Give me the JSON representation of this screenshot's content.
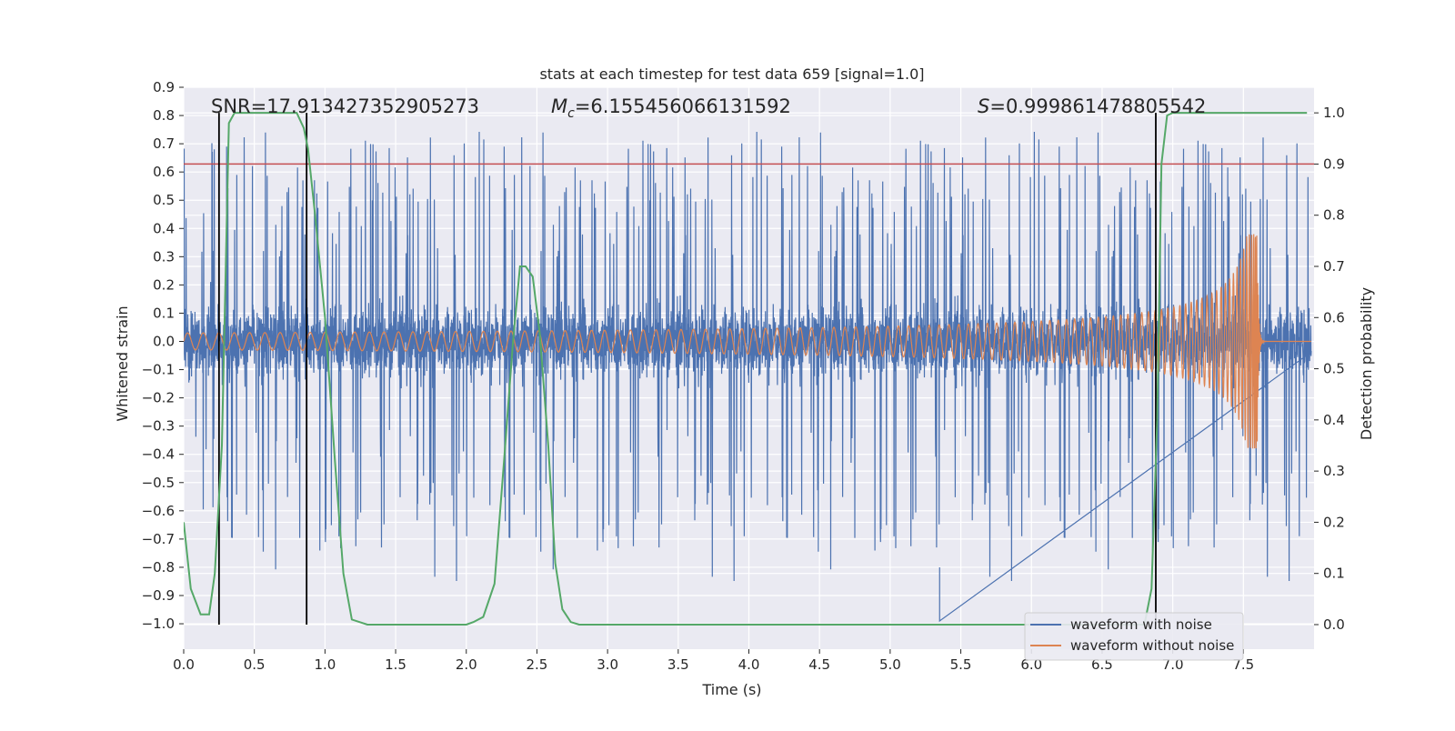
{
  "chart_data": {
    "type": "line",
    "title": "stats at each timestep for test data 659 [signal=1.0]",
    "xlabel": "Time (s)",
    "ylabel": "Whitened strain",
    "y2label": "Detection probability",
    "xlim": [
      0.0,
      8.0
    ],
    "ylim": [
      -1.09,
      0.9
    ],
    "y2lim": [
      -0.048,
      1.05
    ],
    "x_ticks": [
      "0.0",
      "0.5",
      "1.0",
      "1.5",
      "2.0",
      "2.5",
      "3.0",
      "3.5",
      "4.0",
      "4.5",
      "5.0",
      "5.5",
      "6.0",
      "6.5",
      "7.0",
      "7.5"
    ],
    "y_ticks": [
      "0.9",
      "0.8",
      "0.7",
      "0.6",
      "0.5",
      "0.4",
      "0.3",
      "0.2",
      "0.1",
      "0.0",
      "−0.1",
      "−0.2",
      "−0.3",
      "−0.4",
      "−0.5",
      "−0.6",
      "−0.7",
      "−0.8",
      "−0.9",
      "−1.0"
    ],
    "y2_ticks": [
      "1.0",
      "0.9",
      "0.8",
      "0.7",
      "0.6",
      "0.5",
      "0.4",
      "0.3",
      "0.2",
      "0.1",
      "0.0"
    ],
    "annotations": {
      "snr": "SNR=17.913427352905273",
      "mc_symbol": "M",
      "mc_sub": "c",
      "mc_value": "=6.155456066131592",
      "s_symbol": "S",
      "s_value": "=0.999861478805542"
    },
    "legend": {
      "placement": "lower-right",
      "entries": [
        "waveform with noise",
        "waveform without noise"
      ]
    },
    "grid": true,
    "threshold": 0.9,
    "vertical_markers": [
      0.25,
      0.87,
      6.88
    ],
    "series": [
      {
        "name": "waveform with noise",
        "color": "#4c72b0",
        "description": "whitened noisy strain, amplitude roughly ±0.3 with spikes to ±0.85"
      },
      {
        "name": "waveform without noise",
        "color": "#dd8452",
        "description": "chirp signal, amplitude ~0.03 rising to ~0.38 at merger (~7.6 s)",
        "merger_time": 7.6
      },
      {
        "name": "detection probability",
        "color": "#55a868",
        "axis": "right",
        "x": [
          0.0,
          0.05,
          0.12,
          0.18,
          0.22,
          0.27,
          0.32,
          0.36,
          0.45,
          0.55,
          0.7,
          0.8,
          0.85,
          0.88,
          0.93,
          1.0,
          1.07,
          1.13,
          1.19,
          1.3,
          1.6,
          1.9,
          2.0,
          2.05,
          2.12,
          2.2,
          2.27,
          2.33,
          2.38,
          2.42,
          2.47,
          2.52,
          2.58,
          2.63,
          2.68,
          2.74,
          2.8,
          3.0,
          4.0,
          5.0,
          6.0,
          6.5,
          6.8,
          6.85,
          6.89,
          6.92,
          6.96,
          7.0,
          7.5,
          7.95
        ],
        "y": [
          0.2,
          0.07,
          0.02,
          0.02,
          0.1,
          0.35,
          0.98,
          1.0,
          1.0,
          1.0,
          1.0,
          1.0,
          0.97,
          0.93,
          0.8,
          0.6,
          0.32,
          0.1,
          0.01,
          0.0,
          0.0,
          0.0,
          0.0,
          0.005,
          0.015,
          0.08,
          0.33,
          0.55,
          0.7,
          0.7,
          0.68,
          0.57,
          0.35,
          0.12,
          0.03,
          0.005,
          0.0,
          0.0,
          0.0,
          0.0,
          0.0,
          0.0,
          0.0,
          0.07,
          0.4,
          0.9,
          0.995,
          1.0,
          1.0,
          1.0
        ]
      }
    ],
    "colors": {
      "background": "#eaeaf2",
      "grid": "#ffffff",
      "threshold": "#c44e52",
      "markers": "#000000"
    }
  }
}
